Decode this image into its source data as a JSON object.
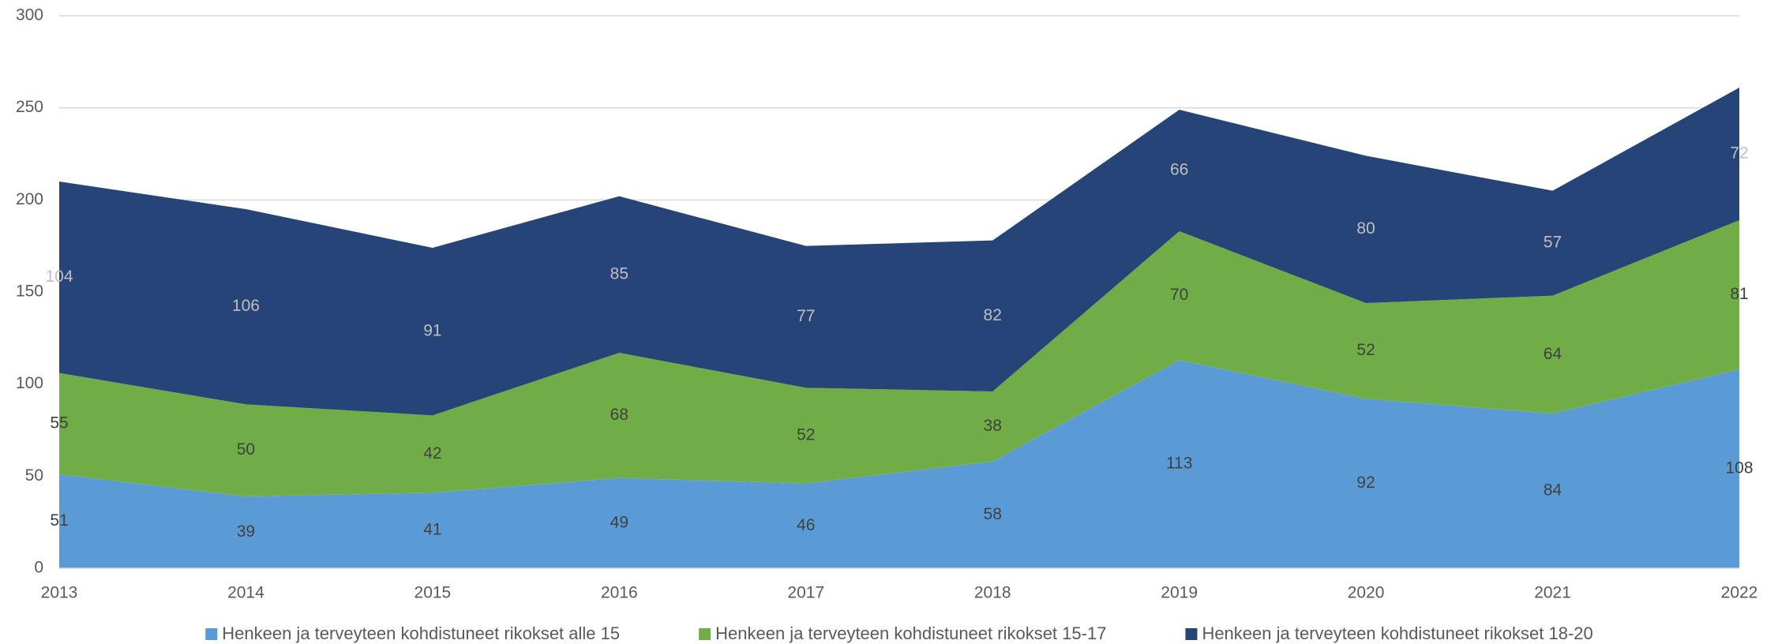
{
  "chart_data": {
    "type": "stacked_area",
    "categories": [
      "2013",
      "2014",
      "2015",
      "2016",
      "2017",
      "2018",
      "2019",
      "2020",
      "2021",
      "2022"
    ],
    "series": [
      {
        "name": "Henkeen ja terveyteen kohdistuneet rikokset alle 15",
        "color": "#5b9bd5",
        "label_color": "#404040",
        "values": [
          51,
          39,
          41,
          49,
          46,
          58,
          113,
          92,
          84,
          108
        ]
      },
      {
        "name": "Henkeen ja terveyteen kohdistuneet rikokset 15-17",
        "color": "#70ad47",
        "label_color": "#404040",
        "values": [
          55,
          50,
          42,
          68,
          52,
          38,
          70,
          52,
          64,
          81
        ]
      },
      {
        "name": "Henkeen ja terveyteen kohdistuneet rikokset 18-20",
        "color": "#264478",
        "label_color": "#bfbfbf",
        "values": [
          104,
          106,
          91,
          85,
          77,
          82,
          66,
          80,
          57,
          72
        ]
      }
    ],
    "ylim": [
      0,
      300
    ],
    "yticks": [
      0,
      50,
      100,
      150,
      200,
      250,
      300
    ],
    "grid": true,
    "legend": "bottom"
  }
}
